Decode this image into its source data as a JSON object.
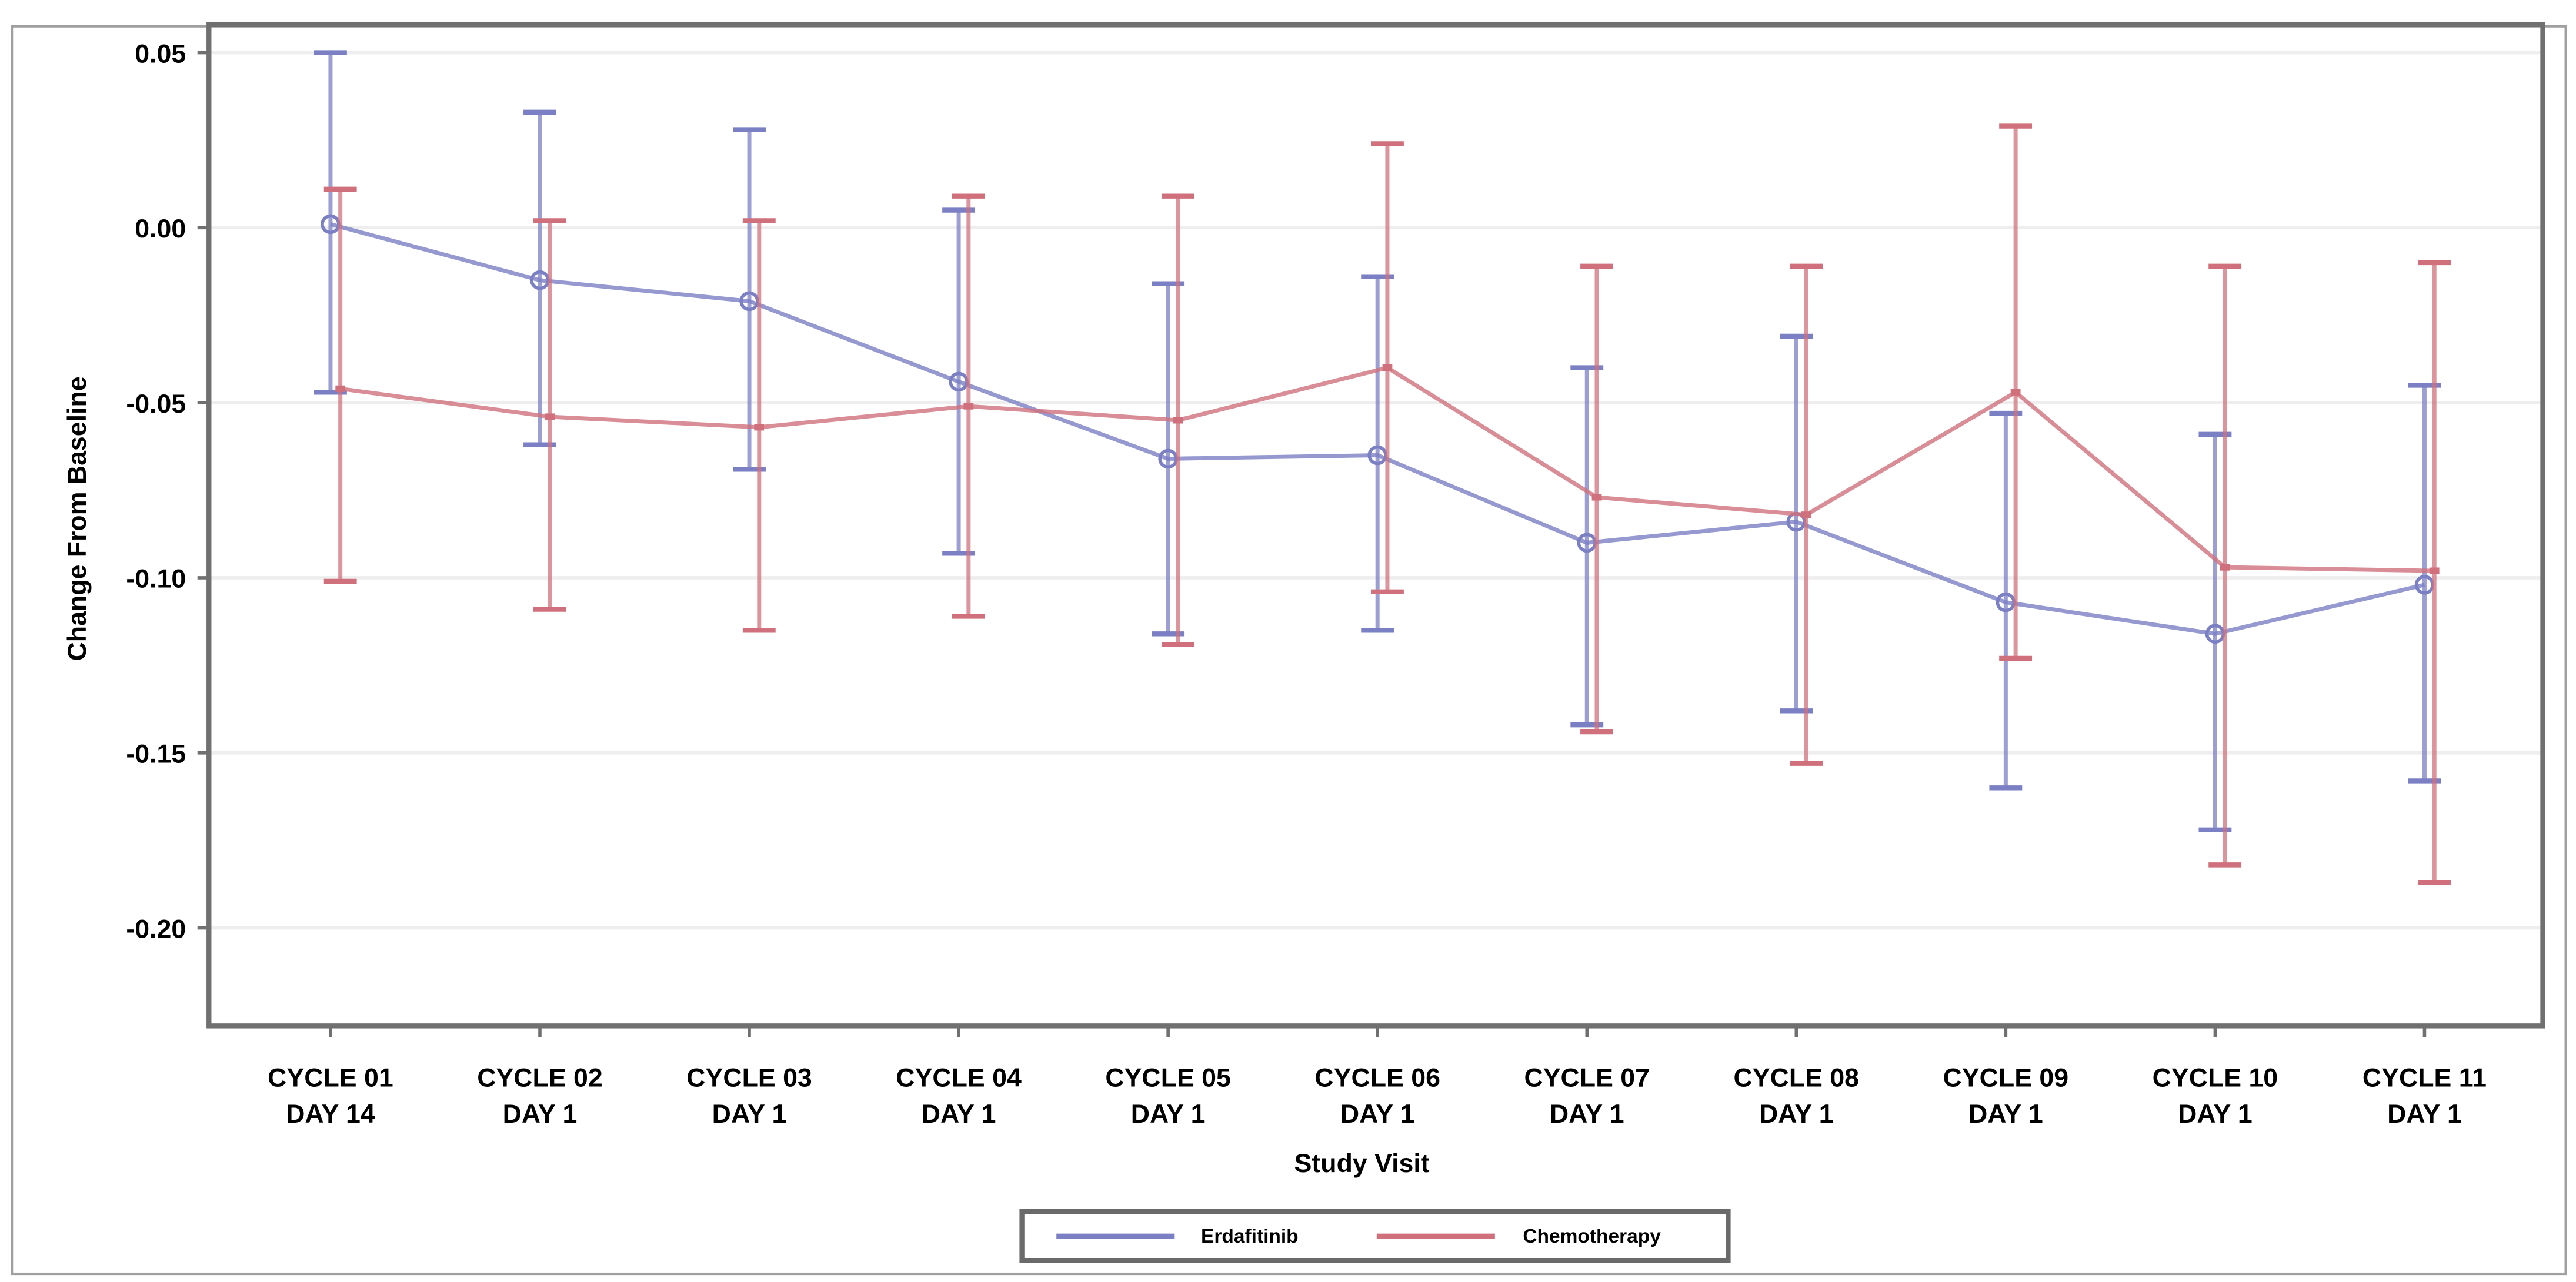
{
  "chart_data": {
    "type": "line",
    "xlabel": "Study Visit",
    "ylabel": "Change From Baseline",
    "categories": [
      [
        "CYCLE 01",
        "DAY 14"
      ],
      [
        "CYCLE 02",
        "DAY 1"
      ],
      [
        "CYCLE 03",
        "DAY 1"
      ],
      [
        "CYCLE 04",
        "DAY 1"
      ],
      [
        "CYCLE 05",
        "DAY 1"
      ],
      [
        "CYCLE 06",
        "DAY 1"
      ],
      [
        "CYCLE 07",
        "DAY 1"
      ],
      [
        "CYCLE 08",
        "DAY 1"
      ],
      [
        "CYCLE 09",
        "DAY 1"
      ],
      [
        "CYCLE 10",
        "DAY 1"
      ],
      [
        "CYCLE 11",
        "DAY 1"
      ]
    ],
    "yticks": [
      0.05,
      0.0,
      -0.05,
      -0.1,
      -0.15,
      -0.2
    ],
    "ytick_labels": [
      "0.05",
      "0.00",
      "-0.05",
      "-0.10",
      "-0.15",
      "-0.20"
    ],
    "ylim": [
      -0.228,
      0.058
    ],
    "grid": "horizontal",
    "legend_position": "bottom",
    "series": [
      {
        "name": "Erdafitinib",
        "color": "#7b7fc4",
        "values": [
          0.001,
          -0.015,
          -0.021,
          -0.044,
          -0.066,
          -0.065,
          -0.09,
          -0.084,
          -0.107,
          -0.116,
          -0.102
        ],
        "upper": [
          0.05,
          0.033,
          0.028,
          0.005,
          -0.016,
          -0.014,
          -0.04,
          -0.031,
          -0.053,
          -0.059,
          -0.045
        ],
        "lower": [
          -0.047,
          -0.062,
          -0.069,
          -0.093,
          -0.116,
          -0.115,
          -0.142,
          -0.138,
          -0.16,
          -0.172,
          -0.158
        ]
      },
      {
        "name": "Chemotherapy",
        "color": "#d0707c",
        "values": [
          -0.046,
          -0.054,
          -0.057,
          -0.051,
          -0.055,
          -0.04,
          -0.077,
          -0.082,
          -0.047,
          -0.097,
          -0.098
        ],
        "upper": [
          0.011,
          0.002,
          0.002,
          0.009,
          0.009,
          0.024,
          -0.011,
          -0.011,
          0.029,
          -0.011,
          -0.01
        ],
        "lower": [
          -0.101,
          -0.109,
          -0.115,
          -0.111,
          -0.119,
          -0.104,
          -0.144,
          -0.153,
          -0.123,
          -0.182,
          -0.187
        ]
      }
    ]
  }
}
